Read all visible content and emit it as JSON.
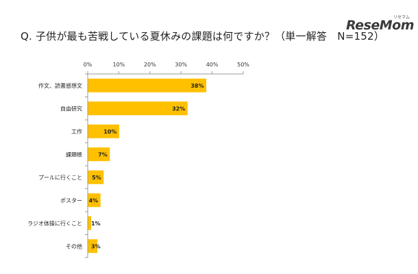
{
  "title": "Q.  子供が最も苦戦している夏休みの課題は何ですか？（単一解答　N=152）",
  "logo": {
    "main": "ReseMom",
    "sub": "リセマム"
  },
  "chart_data": {
    "type": "bar",
    "orientation": "horizontal",
    "categories": [
      "作文、読書感想文",
      "自由研究",
      "工作",
      "課題帳",
      "プールに行くこと",
      "ポスター",
      "ラジオ体操に行くこと",
      "その他"
    ],
    "values": [
      38,
      32,
      10,
      7,
      5,
      4,
      1,
      3
    ],
    "data_labels": [
      "38%",
      "32%",
      "10%",
      "7%",
      "5%",
      "4%",
      "1%",
      "3%"
    ],
    "x_ticks": [
      "0%",
      "10%",
      "20%",
      "30%",
      "40%",
      "50%"
    ],
    "xlim": [
      0,
      50
    ],
    "bar_color": "#FFC000",
    "grid": false,
    "legend": "none"
  }
}
